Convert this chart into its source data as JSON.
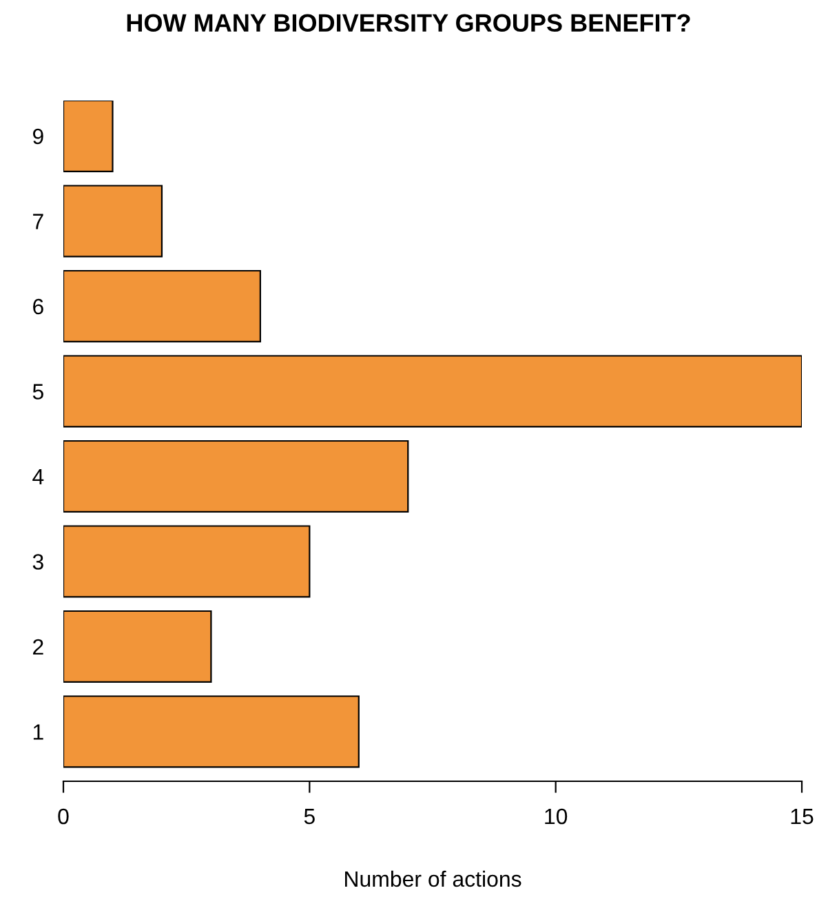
{
  "chart_data": {
    "type": "bar",
    "orientation": "horizontal",
    "title": "HOW MANY BIODIVERSITY GROUPS BENEFIT?",
    "xlabel": "Number of actions",
    "categories": [
      "9",
      "7",
      "6",
      "5",
      "4",
      "3",
      "2",
      "1"
    ],
    "values": [
      1,
      2,
      4,
      15,
      7,
      5,
      3,
      6
    ],
    "color": "#f29539",
    "xlim": [
      0,
      15
    ],
    "xticks": [
      0,
      5,
      10,
      15
    ],
    "grid": false,
    "legend": false
  }
}
